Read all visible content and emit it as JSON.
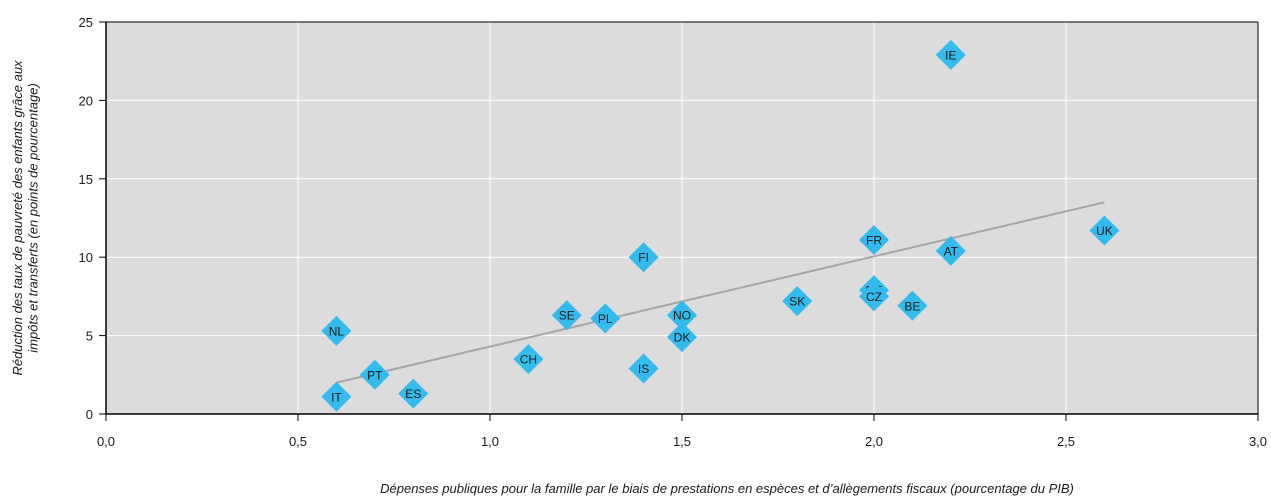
{
  "chart_data": {
    "type": "scatter",
    "xlabel": "Dépenses publiques pour la famille par le biais de prestations en espèces et d’allègements fiscaux (pourcentage du PIB)",
    "ylabel_lines": [
      "Réduction des taux de pauvreté des enfants grâce aux",
      "impôts et transferts (en points de pourcentage)"
    ],
    "xlim": [
      0,
      3
    ],
    "ylim": [
      0,
      25
    ],
    "x_ticks": [
      0,
      0.5,
      1,
      1.5,
      2,
      2.5,
      3
    ],
    "x_tick_labels": [
      "0,0",
      "0,5",
      "1,0",
      "1,5",
      "2,0",
      "2,5",
      "3,0"
    ],
    "y_ticks": [
      0,
      5,
      10,
      15,
      20,
      25
    ],
    "y_tick_labels": [
      "0",
      "5",
      "10",
      "15",
      "20",
      "25"
    ],
    "grid": true,
    "colors": {
      "plot_bg": "#dcdcdc",
      "grid": "#ffffff",
      "marker": "#33bbee",
      "trend": "#a6a6a6",
      "axis": "#000000"
    },
    "points": [
      {
        "label": "IE",
        "x": 2.2,
        "y": 22.9
      },
      {
        "label": "UK",
        "x": 2.6,
        "y": 11.7
      },
      {
        "label": "FR",
        "x": 2.0,
        "y": 11.1
      },
      {
        "label": "AT",
        "x": 2.2,
        "y": 10.4
      },
      {
        "label": "FI",
        "x": 1.4,
        "y": 10.0
      },
      {
        "label": "DE",
        "x": 2.0,
        "y": 7.9
      },
      {
        "label": "CZ",
        "x": 2.0,
        "y": 7.5
      },
      {
        "label": "SK",
        "x": 1.8,
        "y": 7.2
      },
      {
        "label": "BE",
        "x": 2.1,
        "y": 6.9
      },
      {
        "label": "SE",
        "x": 1.2,
        "y": 6.3
      },
      {
        "label": "NO",
        "x": 1.5,
        "y": 6.3
      },
      {
        "label": "PL",
        "x": 1.3,
        "y": 6.1
      },
      {
        "label": "NL",
        "x": 0.6,
        "y": 5.3
      },
      {
        "label": "DK",
        "x": 1.5,
        "y": 4.9
      },
      {
        "label": "CH",
        "x": 1.1,
        "y": 3.5
      },
      {
        "label": "IS",
        "x": 1.4,
        "y": 2.9
      },
      {
        "label": "PT",
        "x": 0.7,
        "y": 2.5
      },
      {
        "label": "ES",
        "x": 0.8,
        "y": 1.3
      },
      {
        "label": "IT",
        "x": 0.6,
        "y": 1.1
      }
    ],
    "trendline": {
      "x": [
        0.6,
        2.6
      ],
      "y": [
        2.0,
        13.5
      ]
    }
  }
}
